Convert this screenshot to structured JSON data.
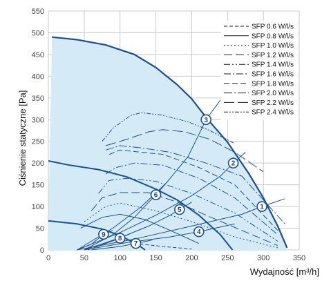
{
  "chart_data": {
    "type": "line",
    "xlabel": "Wydajność [m³/h]",
    "ylabel": "Ciśnienie statyczne [Pa]",
    "xlim": [
      0,
      350
    ],
    "ylim": [
      0,
      550
    ],
    "x_ticks": [
      0,
      50,
      100,
      150,
      200,
      250,
      300,
      350
    ],
    "y_ticks": [
      0,
      50,
      100,
      150,
      200,
      250,
      300,
      350,
      400,
      450,
      500,
      550
    ],
    "grid": true,
    "legend_position": "top-right",
    "colors": {
      "curve": "#1a4f8f",
      "area": "#d4eaf7",
      "grid": "#c9c9c9"
    },
    "envelope": [
      [
        5,
        490
      ],
      [
        40,
        484
      ],
      [
        80,
        472
      ],
      [
        120,
        450
      ],
      [
        150,
        420
      ],
      [
        180,
        380
      ],
      [
        200,
        348
      ],
      [
        220,
        305
      ],
      [
        250,
        248
      ],
      [
        280,
        175
      ],
      [
        300,
        120
      ],
      [
        320,
        55
      ],
      [
        333,
        5
      ]
    ],
    "fan_curves": [
      {
        "points": [
          [
            0,
            205
          ],
          [
            30,
            195
          ],
          [
            70,
            185
          ],
          [
            110,
            168
          ],
          [
            150,
            140
          ],
          [
            180,
            115
          ],
          [
            210,
            80
          ],
          [
            240,
            35
          ],
          [
            257,
            0
          ]
        ]
      },
      {
        "points": [
          [
            0,
            67
          ],
          [
            40,
            60
          ],
          [
            75,
            48
          ],
          [
            100,
            33
          ],
          [
            125,
            12
          ],
          [
            135,
            0
          ]
        ]
      }
    ],
    "system_curves": [
      {
        "label": "1",
        "points": [
          [
            40,
            0
          ],
          [
            120,
            25
          ],
          [
            200,
            55
          ],
          [
            270,
            82
          ],
          [
            298,
            100
          ],
          [
            330,
            118
          ]
        ]
      },
      {
        "label": "2",
        "points": [
          [
            40,
            0
          ],
          [
            100,
            40
          ],
          [
            150,
            80
          ],
          [
            200,
            125
          ],
          [
            240,
            170
          ],
          [
            258,
            200
          ],
          [
            275,
            225
          ]
        ]
      },
      {
        "label": "3",
        "points": [
          [
            40,
            0
          ],
          [
            90,
            50
          ],
          [
            130,
            100
          ],
          [
            165,
            155
          ],
          [
            195,
            215
          ],
          [
            220,
            300
          ],
          [
            240,
            345
          ]
        ]
      },
      {
        "label": "4",
        "points": [
          [
            50,
            0
          ],
          [
            110,
            17
          ],
          [
            170,
            30
          ],
          [
            210,
            42
          ],
          [
            260,
            60
          ]
        ]
      },
      {
        "label": "5",
        "points": [
          [
            50,
            0
          ],
          [
            100,
            28
          ],
          [
            140,
            55
          ],
          [
            170,
            80
          ],
          [
            183,
            93
          ],
          [
            200,
            110
          ]
        ]
      },
      {
        "label": "6",
        "points": [
          [
            50,
            0
          ],
          [
            90,
            35
          ],
          [
            120,
            75
          ],
          [
            140,
            110
          ],
          [
            150,
            127
          ],
          [
            165,
            155
          ]
        ]
      },
      {
        "label": "7",
        "points": [
          [
            60,
            0
          ],
          [
            100,
            8
          ],
          [
            122,
            15
          ],
          [
            145,
            23
          ]
        ]
      },
      {
        "label": "8",
        "points": [
          [
            55,
            0
          ],
          [
            80,
            15
          ],
          [
            100,
            27
          ],
          [
            115,
            38
          ]
        ]
      },
      {
        "label": "9",
        "points": [
          [
            40,
            0
          ],
          [
            60,
            13
          ],
          [
            77,
            36
          ],
          [
            90,
            45
          ]
        ]
      }
    ],
    "sfp_series": [
      {
        "name": "SFP 0.6 W/l/s",
        "dash": "5,3",
        "points": [
          [
            120,
            15
          ],
          [
            160,
            8
          ],
          [
            200,
            2
          ]
        ]
      },
      {
        "name": "SFP 0.8 W/l/s",
        "dash": "",
        "points": [
          [
            45,
            50
          ],
          [
            75,
            75
          ],
          [
            100,
            82
          ],
          [
            135,
            70
          ],
          [
            170,
            45
          ],
          [
            210,
            15
          ]
        ]
      },
      {
        "name": "SFP 1.0 W/l/s",
        "dash": "2,3",
        "points": [
          [
            50,
            65
          ],
          [
            80,
            100
          ],
          [
            100,
            108
          ],
          [
            150,
            90
          ],
          [
            200,
            65
          ],
          [
            260,
            30
          ],
          [
            320,
            5
          ]
        ]
      },
      {
        "name": "SFP 1.2 W/l/s",
        "dash": "12,5",
        "points": [
          [
            60,
            90
          ],
          [
            75,
            120
          ],
          [
            100,
            132
          ],
          [
            140,
            132
          ],
          [
            180,
            110
          ],
          [
            220,
            80
          ],
          [
            270,
            45
          ],
          [
            320,
            10
          ]
        ]
      },
      {
        "name": "SFP 1.4 W/l/s",
        "dash": "9,3,2,3,2,3",
        "points": [
          [
            70,
            130
          ],
          [
            85,
            160
          ],
          [
            110,
            165
          ],
          [
            150,
            158
          ],
          [
            200,
            130
          ],
          [
            260,
            85
          ],
          [
            320,
            20
          ]
        ]
      },
      {
        "name": "SFP 1.6 W/l/s",
        "dash": "10,3,2,3",
        "points": [
          [
            80,
            175
          ],
          [
            95,
            190
          ],
          [
            120,
            200
          ],
          [
            160,
            195
          ],
          [
            210,
            165
          ],
          [
            260,
            120
          ],
          [
            320,
            35
          ]
        ]
      },
      {
        "name": "SFP 1.8 W/l/s",
        "dash": "8,4",
        "points": [
          [
            85,
            220
          ],
          [
            100,
            230
          ],
          [
            130,
            225
          ],
          [
            160,
            220
          ],
          [
            210,
            190
          ],
          [
            260,
            150
          ],
          [
            320,
            45
          ]
        ]
      },
      {
        "name": "SFP 2.0 W/l/s",
        "dash": "12,3,2,3",
        "points": [
          [
            80,
            230
          ],
          [
            100,
            240
          ],
          [
            130,
            235
          ],
          [
            170,
            225
          ],
          [
            220,
            200
          ],
          [
            270,
            170
          ],
          [
            330,
            60
          ]
        ]
      },
      {
        "name": "SFP 2.2 W/l/s",
        "dash": "15,5",
        "points": [
          [
            80,
            240
          ],
          [
            110,
            255
          ],
          [
            140,
            272
          ],
          [
            160,
            277
          ],
          [
            190,
            272
          ],
          [
            225,
            255
          ],
          [
            260,
            225
          ],
          [
            300,
            180
          ]
        ]
      },
      {
        "name": "SFP 2.4 W/l/s",
        "dash": "6,2,2,2,2,2",
        "points": [
          [
            75,
            250
          ],
          [
            90,
            280
          ],
          [
            115,
            310
          ],
          [
            130,
            316
          ],
          [
            160,
            310
          ],
          [
            195,
            295
          ],
          [
            225,
            275
          ],
          [
            260,
            245
          ]
        ]
      }
    ],
    "envelope_markers": [
      {
        "label": "1",
        "x": 298,
        "y": 100
      },
      {
        "label": "2",
        "x": 258,
        "y": 200
      },
      {
        "label": "3",
        "x": 220,
        "y": 300
      }
    ],
    "upper_markers": [
      {
        "label": "4",
        "x": 210,
        "y": 42
      },
      {
        "label": "5",
        "x": 183,
        "y": 93
      },
      {
        "label": "6",
        "x": 150,
        "y": 127
      }
    ],
    "lower_markers": [
      {
        "label": "7",
        "x": 122,
        "y": 15
      },
      {
        "label": "8",
        "x": 100,
        "y": 27
      },
      {
        "label": "9",
        "x": 77,
        "y": 36
      }
    ]
  }
}
